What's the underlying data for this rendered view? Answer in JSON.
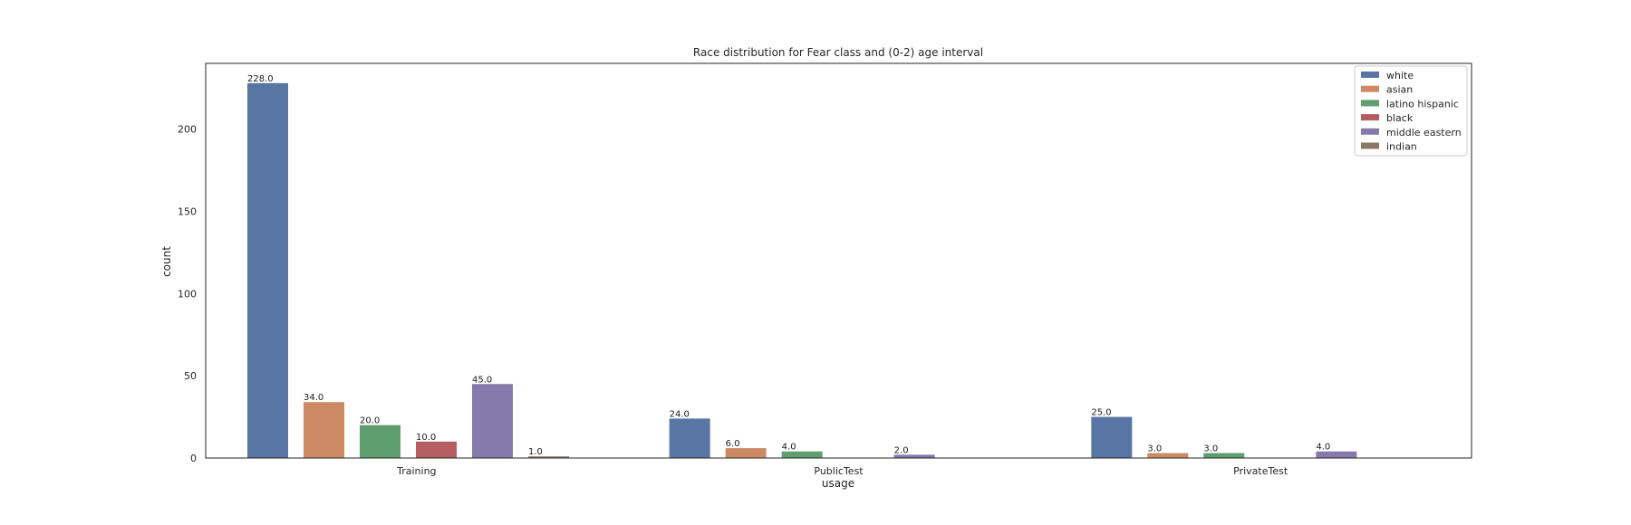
{
  "chart_data": {
    "type": "bar",
    "title": "Race distribution for Fear class and (0-2) age interval",
    "xlabel": "usage",
    "ylabel": "count",
    "categories": [
      "Training",
      "PublicTest",
      "PrivateTest"
    ],
    "yticks": [
      "0",
      "50",
      "100",
      "150",
      "200"
    ],
    "ylim": [
      0,
      240
    ],
    "grid": false,
    "legend_position": "top-right",
    "series": [
      {
        "name": "white",
        "color": "#5975a4",
        "values": [
          228.0,
          24.0,
          25.0
        ],
        "labels": [
          "228.0",
          "24.0",
          "25.0"
        ]
      },
      {
        "name": "asian",
        "color": "#cc8963",
        "values": [
          34.0,
          6.0,
          3.0
        ],
        "labels": [
          "34.0",
          "6.0",
          "3.0"
        ]
      },
      {
        "name": "latino hispanic",
        "color": "#5f9e6e",
        "values": [
          20.0,
          4.0,
          3.0
        ],
        "labels": [
          "20.0",
          "4.0",
          "3.0"
        ]
      },
      {
        "name": "black",
        "color": "#b55d60",
        "values": [
          10.0,
          0,
          0
        ],
        "labels": [
          "10.0",
          "",
          ""
        ]
      },
      {
        "name": "middle eastern",
        "color": "#857aab",
        "values": [
          45.0,
          2.0,
          4.0
        ],
        "labels": [
          "45.0",
          "2.0",
          "4.0"
        ]
      },
      {
        "name": "indian",
        "color": "#8d7866",
        "values": [
          1.0,
          0,
          0
        ],
        "labels": [
          "1.0",
          "",
          ""
        ]
      }
    ]
  }
}
